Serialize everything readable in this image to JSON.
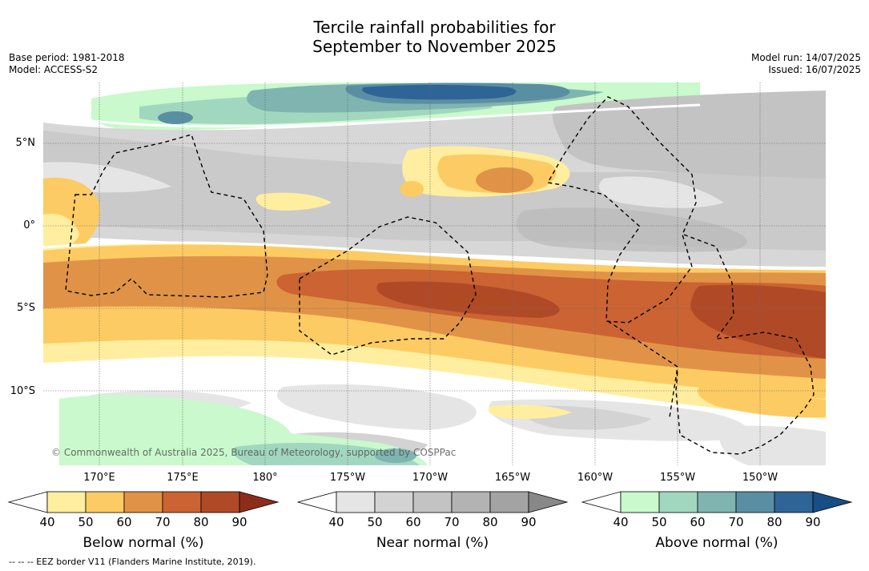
{
  "title_line1": "Tercile rainfall probabilities for",
  "title_line2": "September to November 2025",
  "base_period": "Base period: 1981-2018",
  "model": "Model: ACCESS-S2",
  "model_run": "Model run: 14/07/2025",
  "issued": "Issued: 16/07/2025",
  "copyright": "© Commonwealth of Australia 2025, Bureau of Meteorology, supported by COSPPac",
  "footnote": "--  --  -- EEZ border V11 (Flanders Marine Institute, 2019).",
  "lat_labels": [
    "5°N",
    "0°",
    "5°S",
    "10°S"
  ],
  "lon_labels": [
    "170°E",
    "175°E",
    "180°",
    "175°W",
    "170°W",
    "165°W",
    "160°W",
    "155°W",
    "150°W"
  ],
  "colorbars": {
    "below": {
      "title": "Below normal (%)",
      "ticks": [
        "40",
        "50",
        "60",
        "70",
        "80",
        "90"
      ],
      "colors": [
        "#ffee9f",
        "#fdcb63",
        "#e09346",
        "#cb6332",
        "#b04a26",
        "#8e2c1a"
      ]
    },
    "near": {
      "title": "Near normal (%)",
      "ticks": [
        "40",
        "50",
        "60",
        "70",
        "80",
        "90"
      ],
      "colors": [
        "#e5e5e5",
        "#d3d3d3",
        "#c3c3c3",
        "#b3b3b3",
        "#a3a3a3",
        "#888888"
      ]
    },
    "above": {
      "title": "Above normal (%)",
      "ticks": [
        "40",
        "50",
        "60",
        "70",
        "80",
        "90"
      ],
      "colors": [
        "#c9f9cc",
        "#a2d7bf",
        "#7fb4b0",
        "#5a8fa3",
        "#2f6497",
        "#174e85"
      ]
    }
  }
}
